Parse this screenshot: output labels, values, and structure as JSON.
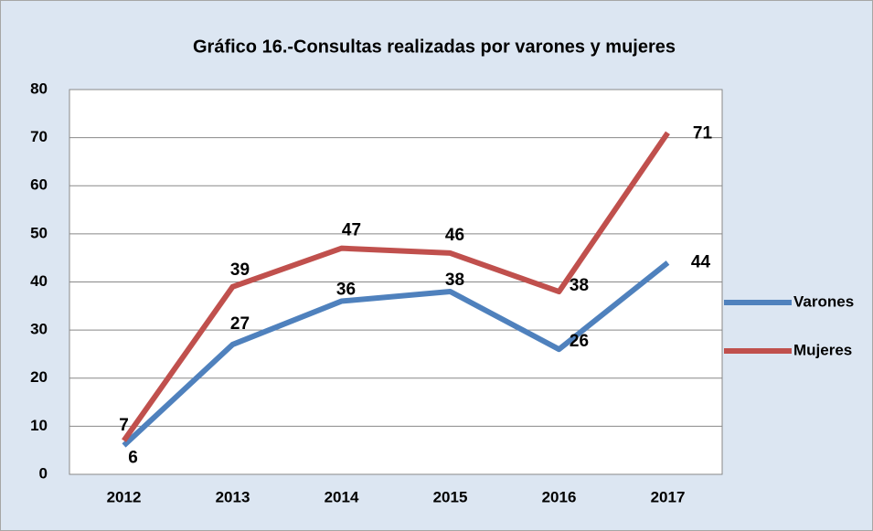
{
  "chart_data": {
    "type": "line",
    "title": "Gráfico 16.-Consultas realizadas por varones y mujeres",
    "categories": [
      "2012",
      "2013",
      "2014",
      "2015",
      "2016",
      "2017"
    ],
    "series": [
      {
        "name": "Varones",
        "color": "#4f81bd",
        "values": [
          6,
          27,
          36,
          38,
          26,
          44
        ]
      },
      {
        "name": "Mujeres",
        "color": "#c0504d",
        "values": [
          7,
          39,
          47,
          46,
          38,
          71
        ]
      }
    ],
    "ylim": [
      0,
      80
    ],
    "yticks": [
      0,
      10,
      20,
      30,
      40,
      50,
      60,
      70,
      80
    ],
    "grid": true,
    "legend": "right"
  }
}
